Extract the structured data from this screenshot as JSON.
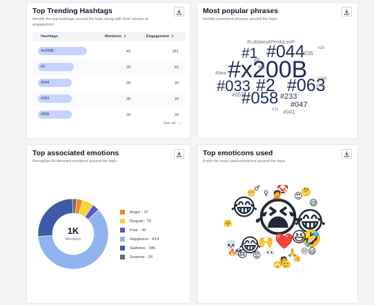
{
  "hashtags_card": {
    "title": "Top Trending Hashtags",
    "subtitle": "Identify the top hashtags around the topic along with their volume of engagement",
    "columns": {
      "hashtag": "Hashtags",
      "mentions": "Mentions",
      "engagement": "Engagement"
    },
    "rows": [
      {
        "tag": "#x200B",
        "mentions": "43",
        "engagement": "251",
        "share": 0.94
      },
      {
        "tag": "#2",
        "mentions": "29",
        "engagement": "83",
        "share": 0.68
      },
      {
        "tag": "#044",
        "mentions": "28",
        "engagement": "29",
        "share": 0.65
      },
      {
        "tag": "#063",
        "mentions": "28",
        "engagement": "29",
        "share": 0.65
      },
      {
        "tag": "#058",
        "mentions": "28",
        "engagement": "29",
        "share": 0.65
      }
    ],
    "see_all": "See all",
    "see_all_icon": "chevron-right-icon"
  },
  "phrases_card": {
    "title": "Most popular phrases",
    "subtitle": "Identify prominent phrases around the topic",
    "words": [
      {
        "text": "#LoblawsAPerduLesP",
        "size": 7,
        "color": "#6b7280"
      },
      {
        "text": "#1",
        "size": 21,
        "color": "#1e2a5a"
      },
      {
        "text": "#044",
        "size": 25,
        "color": "#1e2a5a"
      },
      {
        "text": "#10",
        "size": 6,
        "color": "#6b7280"
      },
      {
        "text": "#036",
        "size": 8,
        "color": "#6b7280"
      },
      {
        "text": "#5",
        "size": 8,
        "color": "#6b7280"
      },
      {
        "text": "#x200B",
        "size": 34,
        "color": "#1e2a5a"
      },
      {
        "text": "#3",
        "size": 9,
        "color": "#6b7280"
      },
      {
        "text": "#bea",
        "size": 7,
        "color": "#6b7280"
      },
      {
        "text": "#040",
        "size": 6,
        "color": "#6b7280"
      },
      {
        "text": "#033",
        "size": 22,
        "color": "#1e2a5a"
      },
      {
        "text": "#2",
        "size": 25,
        "color": "#1e2a5a"
      },
      {
        "text": "#063",
        "size": 25,
        "color": "#1e2a5a"
      },
      {
        "text": "#bce",
        "size": 6,
        "color": "#6b7280"
      },
      {
        "text": "#059",
        "size": 8,
        "color": "#6b7280"
      },
      {
        "text": "#058",
        "size": 24,
        "color": "#1e2a5a"
      },
      {
        "text": "#233",
        "size": 11,
        "color": "#1e2a5a"
      },
      {
        "text": "#047",
        "size": 11,
        "color": "#1e2a5a"
      },
      {
        "text": "#11",
        "size": 6,
        "color": "#6b7280"
      },
      {
        "text": "#041",
        "size": 8,
        "color": "#6b7280"
      }
    ]
  },
  "emotions_card": {
    "title": "Top associated emotions",
    "subtitle": "Recognise AI-detected emotions around the topic",
    "center_value": "1K",
    "center_label": "Mentions",
    "legend": [
      {
        "label": "Anger - 37",
        "value": 37,
        "color": "#f08a24"
      },
      {
        "label": "Disgust - 70",
        "value": 70,
        "color": "#f8d33a"
      },
      {
        "label": "Fear - 43",
        "value": 43,
        "color": "#5b57c4"
      },
      {
        "label": "Happiness - 814",
        "value": 814,
        "color": "#8fb4ef"
      },
      {
        "label": "Sadness - 345",
        "value": 345,
        "color": "#3e5aa8"
      },
      {
        "label": "Surprise - 26",
        "value": 26,
        "color": "#6b6b6b"
      }
    ]
  },
  "emoticons_card": {
    "title": "Top emoticons used",
    "subtitle": "Know the most used emoticons around the topic",
    "emojis": [
      {
        "char": "😭",
        "size": 60
      },
      {
        "char": "😂",
        "size": 40
      },
      {
        "char": "😂",
        "size": 34
      },
      {
        "char": "😂",
        "size": 28
      },
      {
        "char": "🤣",
        "size": 24
      },
      {
        "char": "❤️",
        "size": 22
      },
      {
        "char": "😆",
        "size": 22
      },
      {
        "char": "🙌",
        "size": 18
      },
      {
        "char": "🤡",
        "size": 14
      },
      {
        "char": "🤦",
        "size": 12
      },
      {
        "char": "💀",
        "size": 14
      },
      {
        "char": "😢",
        "size": 14
      },
      {
        "char": "🙏",
        "size": 12
      },
      {
        "char": "🤷",
        "size": 12
      },
      {
        "char": "♂",
        "size": 10
      },
      {
        "char": "♀",
        "size": 10
      },
      {
        "char": "🤔",
        "size": 12
      },
      {
        "char": "😅",
        "size": 12
      },
      {
        "char": "😃",
        "size": 12
      },
      {
        "char": "👀",
        "size": 10
      },
      {
        "char": "😡",
        "size": 12
      },
      {
        "char": "😍",
        "size": 12
      },
      {
        "char": "😳",
        "size": 11
      },
      {
        "char": "🥲",
        "size": 11
      },
      {
        "char": "👍",
        "size": 10
      },
      {
        "char": "🔥",
        "size": 10
      },
      {
        "char": "😒",
        "size": 10
      },
      {
        "char": "😬",
        "size": 10
      },
      {
        "char": "🤗",
        "size": 10
      },
      {
        "char": "🙄",
        "size": 10
      }
    ]
  }
}
